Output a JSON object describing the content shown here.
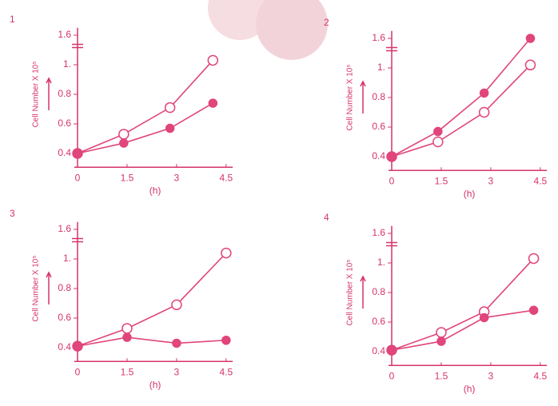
{
  "chart_data": [
    {
      "type": "line",
      "panel": "1",
      "xlabel": "(h)",
      "ylabel": "Cell Number X 10⁵",
      "xlim": [
        0,
        4.7
      ],
      "xticks": [
        0,
        1.5,
        3,
        4.5
      ],
      "ylim": [
        0.35,
        1.65
      ],
      "ybreak": [
        1.1,
        1.5
      ],
      "yticks": [
        0.4,
        0.6,
        0.8,
        {
          "value": 1,
          "label": "1."
        },
        1.6
      ],
      "x": [
        0,
        1.4,
        2.8,
        4.1
      ],
      "series": [
        {
          "color": "#e0457b",
          "marker": "open",
          "values": [
            0.4,
            0.53,
            0.71,
            1.03
          ]
        },
        {
          "color": "#e0457b",
          "marker": "filled",
          "values": [
            0.4,
            0.47,
            0.57,
            0.74
          ]
        }
      ]
    },
    {
      "type": "line",
      "panel": "2",
      "xlabel": "(h)",
      "ylabel": "Cell Number X 10⁵",
      "xlim": [
        0,
        4.7
      ],
      "xticks": [
        0,
        1.5,
        3,
        4.5
      ],
      "ylim": [
        0.35,
        1.65
      ],
      "ybreak": [
        1.1,
        1.5
      ],
      "yticks": [
        0.4,
        0.6,
        0.8,
        {
          "value": 1,
          "label": "1."
        },
        1.6
      ],
      "x": [
        0,
        1.4,
        2.8,
        4.2
      ],
      "series": [
        {
          "color": "#e0457b",
          "marker": "open",
          "values": [
            0.4,
            0.5,
            0.7,
            1.02
          ]
        },
        {
          "color": "#e0457b",
          "marker": "filled",
          "values": [
            0.4,
            0.57,
            0.83,
            1.6
          ]
        }
      ]
    },
    {
      "type": "line",
      "panel": "3",
      "xlabel": "(h)",
      "ylabel": "Cell Number X 10⁵",
      "xlim": [
        0,
        4.7
      ],
      "xticks": [
        0,
        1.5,
        3,
        4.5
      ],
      "ylim": [
        0.35,
        1.65
      ],
      "ybreak": [
        1.1,
        1.5
      ],
      "yticks": [
        0.4,
        0.6,
        0.8,
        {
          "value": 1,
          "label": "1."
        },
        1.6
      ],
      "x": [
        0,
        1.5,
        3,
        4.5
      ],
      "series": [
        {
          "color": "#e0457b",
          "marker": "open",
          "values": [
            0.41,
            0.53,
            0.69,
            1.04
          ]
        },
        {
          "color": "#e0457b",
          "marker": "filled",
          "values": [
            0.41,
            0.47,
            0.43,
            0.45
          ]
        }
      ]
    },
    {
      "type": "line",
      "panel": "4",
      "xlabel": "(h)",
      "ylabel": "Cell Number X 10⁵",
      "xlim": [
        0,
        4.7
      ],
      "xticks": [
        0,
        1.5,
        3,
        4.5
      ],
      "ylim": [
        0.35,
        1.65
      ],
      "ybreak": [
        1.1,
        1.5
      ],
      "yticks": [
        0.4,
        0.6,
        0.8,
        {
          "value": 1,
          "label": "1."
        },
        1.6
      ],
      "x": [
        0,
        1.5,
        2.8,
        4.3
      ],
      "series": [
        {
          "color": "#e0457b",
          "marker": "open",
          "values": [
            0.41,
            0.53,
            0.67,
            1.03
          ]
        },
        {
          "color": "#e0457b",
          "marker": "filled",
          "values": [
            0.41,
            0.47,
            0.63,
            0.68
          ]
        }
      ]
    }
  ]
}
